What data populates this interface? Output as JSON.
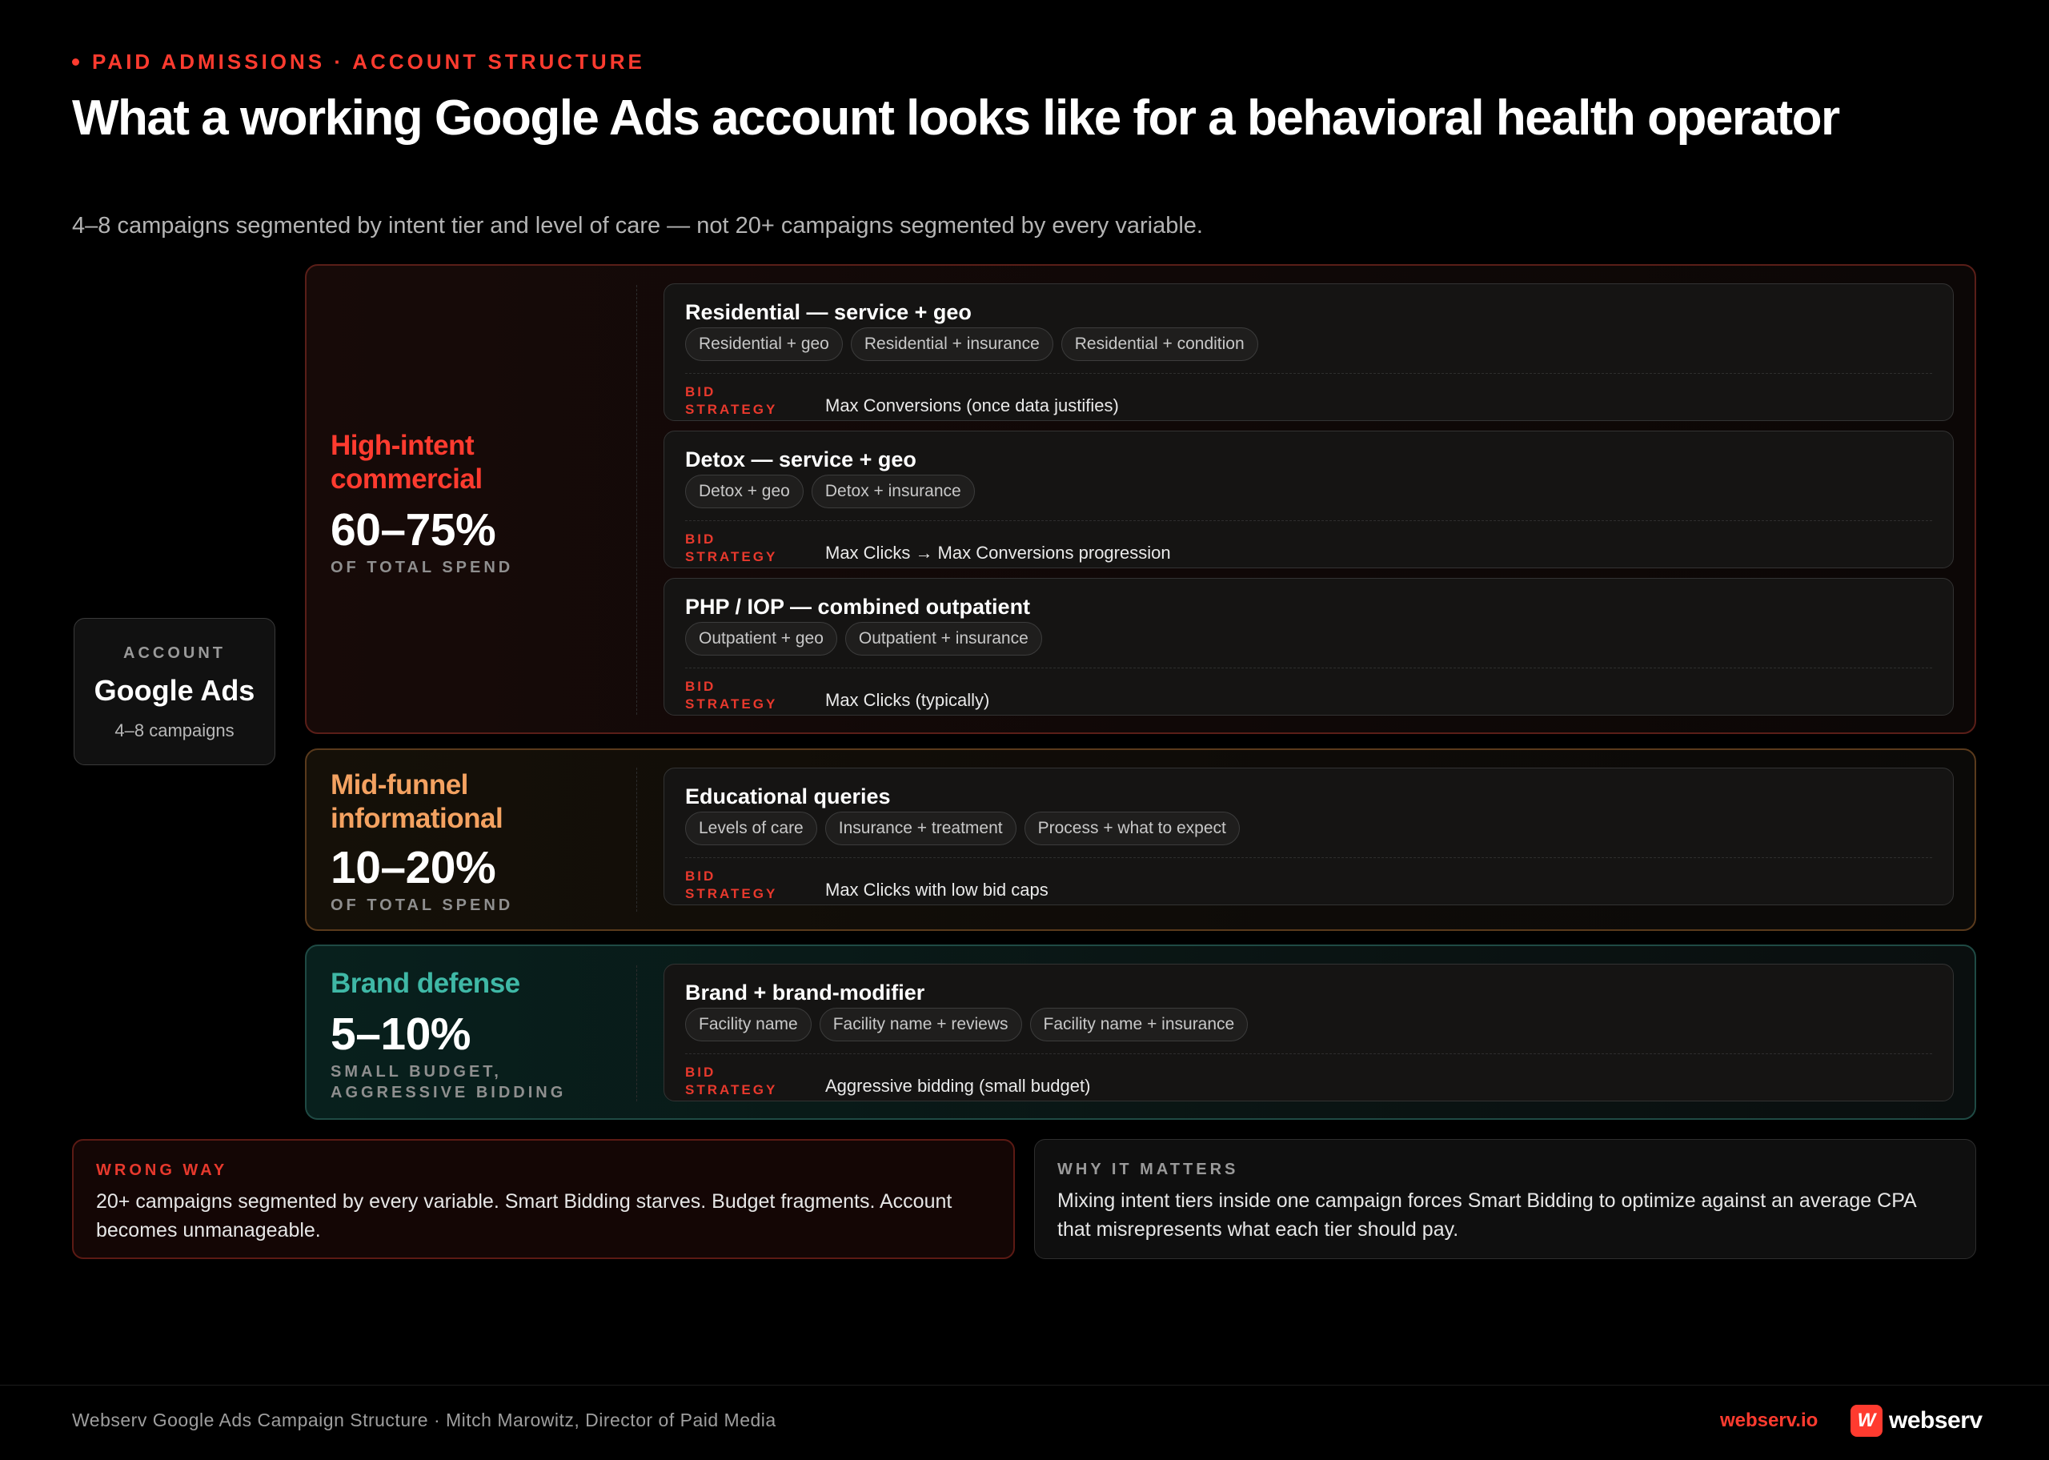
{
  "header": {
    "eyebrow": "PAID ADMISSIONS · ACCOUNT STRUCTURE",
    "title": "What a working Google Ads account looks like for a behavioral health operator",
    "subtitle": "4–8 campaigns segmented by intent tier and level of care — not 20+ campaigns segmented by every variable."
  },
  "account": {
    "label": "ACCOUNT",
    "name": "Google Ads",
    "sub": "4–8 campaigns"
  },
  "bid_label_line1": "BID",
  "bid_label_line2": "STRATEGY",
  "tiers": [
    {
      "name_line1": "High-intent",
      "name_line2": "commercial",
      "pct": "60–75%",
      "note": "OF TOTAL SPEND",
      "color": "#ff3b2f",
      "campaigns": [
        {
          "name": "Residential — service + geo",
          "chips": [
            "Residential + geo",
            "Residential + insurance",
            "Residential + condition"
          ],
          "bid": "Max Conversions (once data justifies)"
        },
        {
          "name": "Detox — service + geo",
          "chips": [
            "Detox + geo",
            "Detox + insurance"
          ],
          "bid": "Max Clicks → Max Conversions progression"
        },
        {
          "name": "PHP / IOP — combined outpatient",
          "chips": [
            "Outpatient + geo",
            "Outpatient + insurance"
          ],
          "bid": "Max Clicks (typically)"
        }
      ]
    },
    {
      "name_line1": "Mid-funnel",
      "name_line2": "informational",
      "pct": "10–20%",
      "note": "OF TOTAL SPEND",
      "color": "#f4a261",
      "campaigns": [
        {
          "name": "Educational queries",
          "chips": [
            "Levels of care",
            "Insurance + treatment",
            "Process + what to expect"
          ],
          "bid": "Max Clicks with low bid caps"
        }
      ]
    },
    {
      "name_line1": "Brand defense",
      "pct": "5–10%",
      "note": "SMALL BUDGET, AGGRESSIVE BIDDING",
      "color": "#3fb8a6",
      "campaigns": [
        {
          "name": "Brand + brand-modifier",
          "chips": [
            "Facility name",
            "Facility name + reviews",
            "Facility name + insurance"
          ],
          "bid": "Aggressive bidding (small budget)"
        }
      ]
    }
  ],
  "wrong_way": {
    "label": "WRONG WAY",
    "text": "20+ campaigns segmented by every variable. Smart Bidding starves. Budget fragments. Account becomes unmanageable."
  },
  "why_it_matters": {
    "label": "WHY IT MATTERS",
    "text": "Mixing intent tiers inside one campaign forces Smart Bidding to optimize against an average CPA that misrepresents what each tier should pay."
  },
  "footer": {
    "credit": "Webserv Google Ads Campaign Structure · Mitch Marowitz, Director of Paid Media",
    "url": "webserv.io",
    "logo_mark": "W",
    "logo_text": "webserv"
  }
}
